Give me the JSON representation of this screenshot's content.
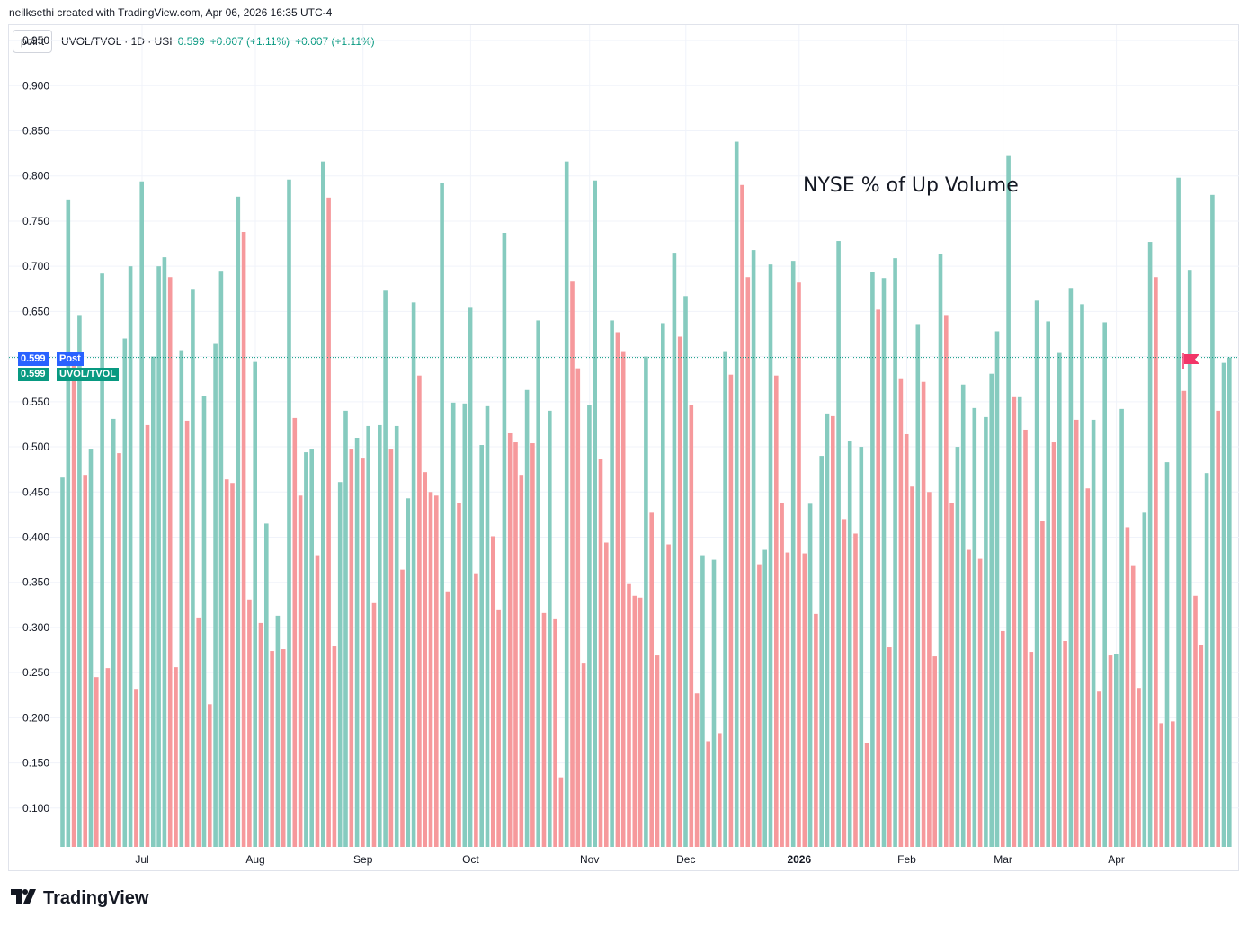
{
  "caption": "neilksethi created with TradingView.com, Apr 06, 2026 16:35 UTC-4",
  "legend": {
    "mode_button": "point",
    "symbol": "UVOL/TVOL · 1D · USI",
    "last": "0.599",
    "change1": "+0.007 (+1.11%)",
    "change2": "+0.007 (+1.11%)"
  },
  "annotation": "NYSE % of Up Volume",
  "price_labels": {
    "post_value": "0.599",
    "post_label": "Post",
    "main_value": "0.599",
    "main_label": "UVOL/TVOL"
  },
  "logo": "TradingView",
  "colors": {
    "up": "#86cbbf",
    "down": "#f6999c",
    "post": "#2962ff",
    "main": "#089981",
    "flag": "#f23668"
  },
  "icons": {
    "flag": "flag-icon",
    "logo": "tradingview-logo-icon"
  },
  "chart_data": {
    "type": "bar",
    "yticks": [
      "0.950",
      "0.900",
      "0.850",
      "0.800",
      "0.750",
      "0.700",
      "0.650",
      "0.600",
      "0.550",
      "0.500",
      "0.450",
      "0.400",
      "0.350",
      "0.300",
      "0.250",
      "0.200",
      "0.150",
      "0.100"
    ],
    "ylim": [
      0.057,
      0.965
    ],
    "xticks": [
      {
        "label": "Jul",
        "index": 14,
        "bold": false
      },
      {
        "label": "Aug",
        "index": 34,
        "bold": false
      },
      {
        "label": "Sep",
        "index": 53,
        "bold": false
      },
      {
        "label": "Oct",
        "index": 72,
        "bold": false
      },
      {
        "label": "Nov",
        "index": 93,
        "bold": false
      },
      {
        "label": "Dec",
        "index": 110,
        "bold": false
      },
      {
        "label": "2026",
        "index": 130,
        "bold": true
      },
      {
        "label": "Feb",
        "index": 149,
        "bold": false
      },
      {
        "label": "Mar",
        "index": 166,
        "bold": false
      },
      {
        "label": "Apr",
        "index": 186,
        "bold": false
      }
    ],
    "values": [
      0.466,
      0.774,
      0.6,
      0.646,
      0.469,
      0.498,
      0.245,
      0.692,
      0.255,
      0.531,
      0.493,
      0.62,
      0.7,
      0.232,
      0.794,
      0.524,
      0.6,
      0.7,
      0.71,
      0.688,
      0.256,
      0.607,
      0.529,
      0.674,
      0.311,
      0.556,
      0.215,
      0.614,
      0.695,
      0.464,
      0.46,
      0.777,
      0.738,
      0.331,
      0.594,
      0.305,
      0.415,
      0.274,
      0.313,
      0.276,
      0.796,
      0.532,
      0.446,
      0.494,
      0.498,
      0.38,
      0.816,
      0.776,
      0.279,
      0.461,
      0.54,
      0.498,
      0.51,
      0.488,
      0.523,
      0.327,
      0.524,
      0.673,
      0.498,
      0.523,
      0.364,
      0.443,
      0.66,
      0.579,
      0.472,
      0.45,
      0.446,
      0.792,
      0.34,
      0.549,
      0.438,
      0.548,
      0.654,
      0.36,
      0.502,
      0.545,
      0.401,
      0.32,
      0.737,
      0.515,
      0.505,
      0.469,
      0.563,
      0.504,
      0.64,
      0.316,
      0.54,
      0.31,
      0.134,
      0.816,
      0.683,
      0.587,
      0.26,
      0.546,
      0.795,
      0.487,
      0.394,
      0.64,
      0.627,
      0.606,
      0.348,
      0.335,
      0.333,
      0.6,
      0.427,
      0.269,
      0.637,
      0.392,
      0.715,
      0.622,
      0.667,
      0.546,
      0.227,
      0.38,
      0.174,
      0.375,
      0.183,
      0.606,
      0.58,
      0.838,
      0.79,
      0.688,
      0.718,
      0.37,
      0.386,
      0.702,
      0.579,
      0.438,
      0.383,
      0.706,
      0.682,
      0.382,
      0.437,
      0.315,
      0.49,
      0.537,
      0.534,
      0.728,
      0.42,
      0.506,
      0.404,
      0.5,
      0.172,
      0.694,
      0.652,
      0.687,
      0.278,
      0.709,
      0.575,
      0.514,
      0.456,
      0.636,
      0.572,
      0.45,
      0.268,
      0.714,
      0.646,
      0.438,
      0.5,
      0.569,
      0.386,
      0.543,
      0.376,
      0.533,
      0.581,
      0.628,
      0.296,
      0.823,
      0.555,
      0.555,
      0.519,
      0.273,
      0.662,
      0.418,
      0.639,
      0.505,
      0.604,
      0.285,
      0.676,
      0.53,
      0.658,
      0.454,
      0.53,
      0.229,
      0.638,
      0.269,
      0.271,
      0.542,
      0.411,
      0.368,
      0.233,
      0.427,
      0.727,
      0.688,
      0.194,
      0.483,
      0.196,
      0.798,
      0.562,
      0.696,
      0.335,
      0.281,
      0.471,
      0.779,
      0.54,
      0.593,
      0.599
    ]
  }
}
